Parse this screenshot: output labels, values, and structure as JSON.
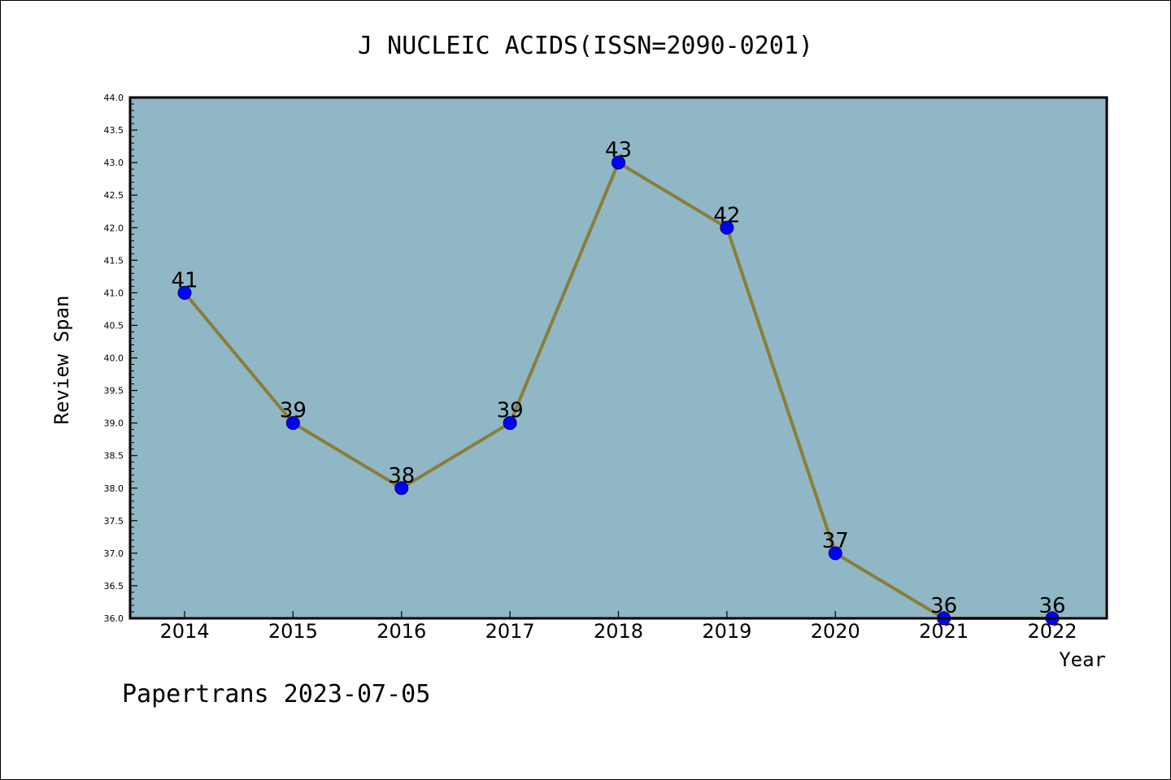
{
  "chart_data": {
    "type": "line",
    "title": "J NUCLEIC ACIDS(ISSN=2090-0201)",
    "xlabel": "Year",
    "ylabel": "Review Span",
    "categories": [
      "2014",
      "2015",
      "2016",
      "2017",
      "2018",
      "2019",
      "2020",
      "2021",
      "2022"
    ],
    "values": [
      41,
      39,
      38,
      39,
      43,
      42,
      37,
      36,
      36
    ],
    "data_labels": [
      "41",
      "39",
      "38",
      "39",
      "43",
      "42",
      "37",
      "36",
      "36"
    ],
    "ylim": [
      36.0,
      44.0
    ],
    "yticks": [
      "36.0",
      "36.5",
      "37.0",
      "37.5",
      "38.0",
      "38.5",
      "39.0",
      "39.5",
      "40.0",
      "40.5",
      "41.0",
      "41.5",
      "42.0",
      "42.5",
      "43.0",
      "43.5",
      "44.0"
    ],
    "grid": false,
    "legend": "none",
    "colors": {
      "plot_background": "#8fb7c5",
      "line": "#8b7d3a",
      "marker": "#0000ff"
    }
  },
  "footer": {
    "watermark": "Papertrans 2023-07-05"
  }
}
